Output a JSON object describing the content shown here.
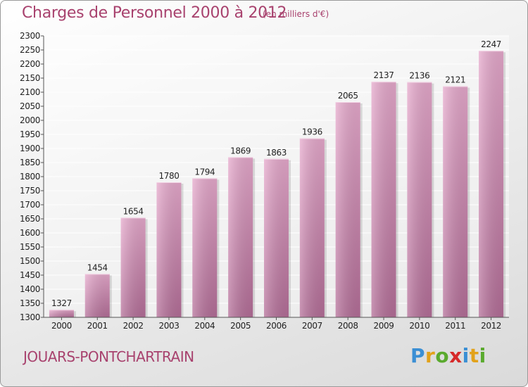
{
  "header": {
    "title": "Charges de Personnel 2000 à 2012",
    "subtitle": "(en milliers d'€)"
  },
  "footer": {
    "town": "JOUARS-PONTCHARTRAIN",
    "logo": [
      "P",
      "r",
      "o",
      "x",
      "i",
      "t",
      "i"
    ],
    "logo_colors": [
      "#3b8fd4",
      "#e2a21b",
      "#5aaa2e",
      "#d62a2a",
      "#3b8fd4",
      "#e2a21b",
      "#5aaa2e"
    ]
  },
  "colors": {
    "bar_light": "#e6a9cc",
    "bar_dark": "#b46e98",
    "title": "#a8426e"
  },
  "chart_data": {
    "type": "bar",
    "title": "Charges de Personnel 2000 à 2012",
    "subtitle": "(en milliers d'€)",
    "categories": [
      "2000",
      "2001",
      "2002",
      "2003",
      "2004",
      "2005",
      "2006",
      "2007",
      "2008",
      "2009",
      "2010",
      "2011",
      "2012"
    ],
    "values": [
      1327,
      1454,
      1654,
      1780,
      1794,
      1869,
      1863,
      1936,
      2065,
      2137,
      2136,
      2121,
      2247
    ],
    "ylim": [
      1300,
      2300
    ],
    "yticks": [
      1300,
      1350,
      1400,
      1450,
      1500,
      1550,
      1600,
      1650,
      1700,
      1750,
      1800,
      1850,
      1900,
      1950,
      2000,
      2050,
      2100,
      2150,
      2200,
      2250,
      2300
    ],
    "grid": true,
    "legend": "none"
  }
}
